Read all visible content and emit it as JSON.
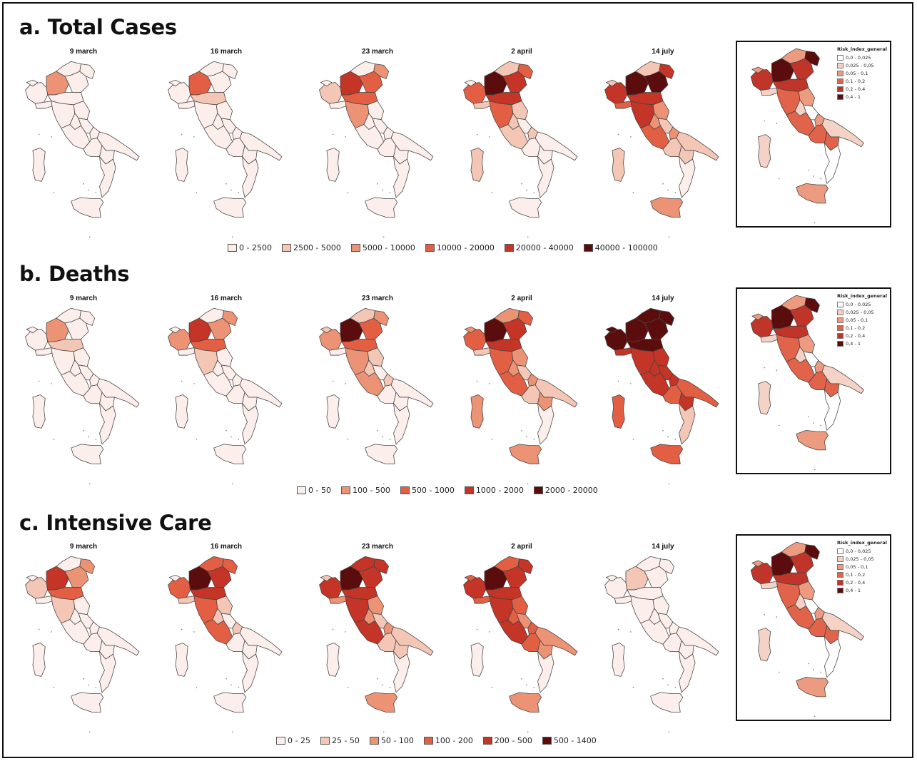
{
  "colors": {
    "c0": "#fcefeb",
    "c1": "#f4c6b6",
    "c2": "#ec9275",
    "c3": "#e35f44",
    "c4": "#c43427",
    "c5": "#5b0d0d"
  },
  "sections": [
    {
      "title": "a. Total Cases",
      "panels": [
        {
          "label": "9 march",
          "levels": [
            0,
            0,
            2,
            0,
            0,
            0,
            0,
            0,
            0,
            0,
            0,
            0,
            0,
            0,
            0,
            0,
            0,
            0,
            0,
            0
          ]
        },
        {
          "label": "16 march",
          "levels": [
            0,
            0,
            3,
            0,
            0,
            0,
            1,
            0,
            0,
            0,
            0,
            0,
            0,
            0,
            0,
            0,
            0,
            0,
            0,
            0
          ]
        },
        {
          "label": "23 march",
          "levels": [
            1,
            0,
            4,
            0,
            3,
            2,
            3,
            0,
            2,
            0,
            0,
            0,
            0,
            0,
            0,
            0,
            0,
            0,
            0,
            0
          ]
        },
        {
          "label": "2 april",
          "levels": [
            3,
            0,
            5,
            1,
            4,
            3,
            4,
            1,
            3,
            1,
            1,
            1,
            0,
            1,
            0,
            0,
            0,
            0,
            0,
            1
          ]
        },
        {
          "label": "14 july",
          "levels": [
            4,
            1,
            5,
            1,
            5,
            4,
            4,
            3,
            4,
            2,
            2,
            3,
            1,
            2,
            1,
            1,
            1,
            0,
            2,
            1
          ]
        }
      ],
      "legend": [
        "0 - 2500",
        "2500 - 5000",
        "5000 - 10000",
        "10000 - 20000",
        "20000 - 40000",
        "40000 - 100000"
      ],
      "legend_levels": [
        0,
        1,
        2,
        3,
        4,
        5
      ]
    },
    {
      "title": "b. Deaths",
      "panels": [
        {
          "label": "9 march",
          "levels": [
            0,
            0,
            2,
            0,
            0,
            0,
            1,
            0,
            0,
            0,
            0,
            0,
            0,
            0,
            0,
            0,
            0,
            0,
            0,
            0
          ]
        },
        {
          "label": "16 march",
          "levels": [
            2,
            0,
            4,
            0,
            2,
            2,
            3,
            0,
            1,
            0,
            0,
            0,
            0,
            0,
            0,
            0,
            0,
            0,
            0,
            0
          ]
        },
        {
          "label": "23 march",
          "levels": [
            2,
            1,
            5,
            1,
            3,
            2,
            3,
            0,
            2,
            1,
            1,
            2,
            0,
            1,
            0,
            0,
            0,
            0,
            0,
            0
          ]
        },
        {
          "label": "2 april",
          "levels": [
            3,
            2,
            5,
            2,
            4,
            3,
            4,
            1,
            3,
            2,
            2,
            3,
            1,
            2,
            1,
            1,
            2,
            0,
            2,
            2
          ]
        },
        {
          "label": "14 july",
          "levels": [
            5,
            5,
            5,
            5,
            5,
            5,
            5,
            4,
            4,
            4,
            4,
            4,
            4,
            4,
            3,
            3,
            4,
            1,
            3,
            3
          ]
        }
      ],
      "legend": [
        "0 - 50",
        "100 - 500",
        "500 - 1000",
        "1000 - 2000",
        "2000 - 20000"
      ],
      "legend_levels": [
        0,
        2,
        3,
        4,
        5
      ]
    },
    {
      "title": "c. Intensive Care",
      "panels": [
        {
          "label": "9 march",
          "levels": [
            1,
            0,
            4,
            0,
            2,
            2,
            3,
            0,
            1,
            0,
            0,
            0,
            0,
            0,
            0,
            0,
            0,
            0,
            0,
            0
          ]
        },
        {
          "label": "16 march",
          "levels": [
            3,
            0,
            5,
            3,
            4,
            3,
            4,
            1,
            3,
            1,
            1,
            3,
            0,
            1,
            0,
            0,
            0,
            0,
            0,
            0
          ]
        },
        {
          "label": "23 march",
          "levels": [
            4,
            1,
            5,
            4,
            4,
            4,
            4,
            2,
            4,
            2,
            2,
            4,
            1,
            2,
            1,
            1,
            1,
            0,
            2,
            0
          ]
        },
        {
          "label": "2 april",
          "levels": [
            4,
            3,
            5,
            3,
            4,
            4,
            4,
            3,
            4,
            3,
            3,
            4,
            2,
            3,
            3,
            2,
            2,
            0,
            2,
            0
          ]
        },
        {
          "label": "14 july",
          "levels": [
            0,
            0,
            1,
            0,
            0,
            0,
            0,
            0,
            0,
            0,
            0,
            0,
            0,
            0,
            0,
            0,
            0,
            0,
            0,
            0
          ]
        }
      ],
      "legend": [
        "0 - 25",
        "25 - 50",
        "50 - 100",
        "100 - 200",
        "200 - 500",
        "500 - 1400"
      ],
      "legend_levels": [
        0,
        1,
        2,
        3,
        4,
        5
      ]
    }
  ],
  "risk_map": {
    "title": "Risk_index_general",
    "levels": [
      4,
      2,
      5,
      2,
      4,
      5,
      4,
      1,
      3,
      2,
      1,
      3,
      0,
      2,
      3,
      1,
      3,
      0,
      2,
      1
    ],
    "legend": [
      "0,0 - 0,025",
      "0,025 - 0,05",
      "0,05 - 0,1",
      "0,1 - 0,2",
      "0,2 - 0,4",
      "0,4 - 1"
    ],
    "legend_colors": [
      "#ffffff",
      "#f4d3c6",
      "#ec9a80",
      "#e0634a",
      "#c0352a",
      "#5b0d0d"
    ]
  }
}
